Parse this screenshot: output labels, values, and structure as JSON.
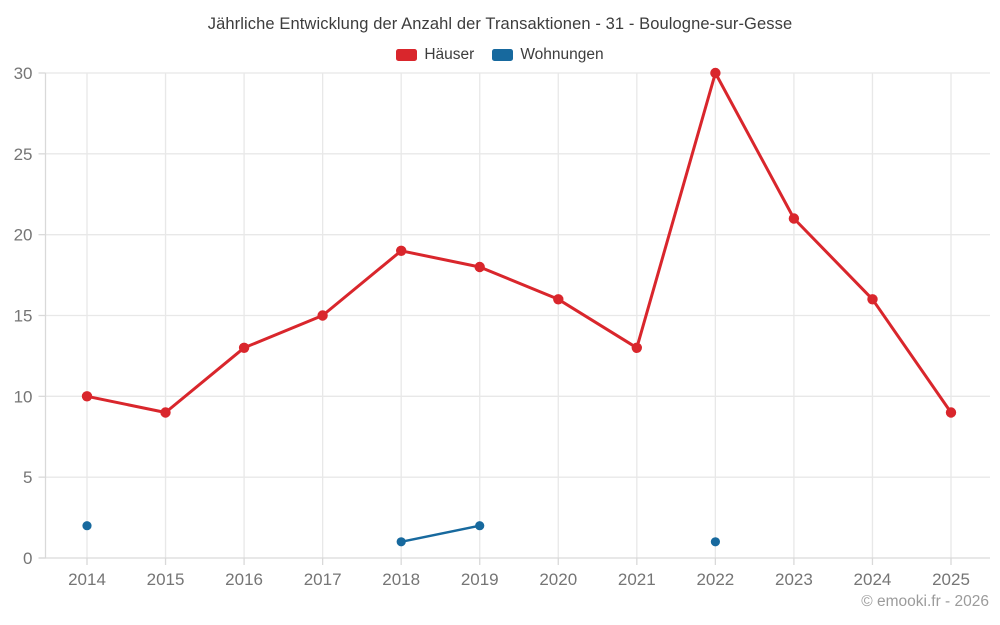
{
  "watermark": "© emooki.fr - 2026",
  "colors": {
    "background": "#ffffff",
    "grid": "#e8e8e8",
    "axis": "#d9d9d9",
    "tick_label": "#757575",
    "title_text": "#3d3d3d",
    "watermark_text": "#9b9b9b",
    "haeuser_red": "#d9262c",
    "wohnungen_blue": "#17699e"
  },
  "chart_data": {
    "type": "line",
    "title": "Jährliche Entwicklung der Anzahl der Transaktionen - 31 - Boulogne-sur-Gesse",
    "xlabel": "",
    "ylabel": "",
    "categories": [
      "2014",
      "2015",
      "2016",
      "2017",
      "2018",
      "2019",
      "2020",
      "2021",
      "2022",
      "2023",
      "2024",
      "2025"
    ],
    "series": [
      {
        "name": "Häuser",
        "color": "#d9262c",
        "values": [
          10,
          9,
          13,
          15,
          19,
          18,
          16,
          13,
          30,
          21,
          16,
          9
        ]
      },
      {
        "name": "Wohnungen",
        "color": "#17699e",
        "values": [
          2,
          null,
          null,
          null,
          1,
          2,
          null,
          null,
          1,
          null,
          null,
          null
        ]
      }
    ],
    "ylim": [
      0,
      30
    ],
    "yticks": [
      0,
      5,
      10,
      15,
      20,
      25,
      30
    ],
    "grid": true,
    "legend_position": "top"
  }
}
